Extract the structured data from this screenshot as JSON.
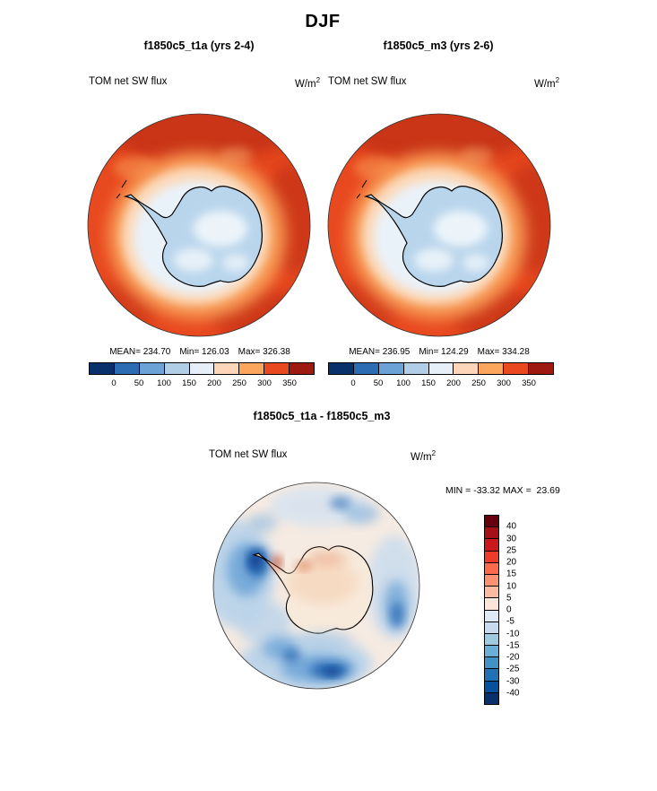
{
  "page_title": "DJF",
  "panels": [
    {
      "title": "f1850c5_t1a (yrs 2-4)",
      "var_label": "TOM net SW flux",
      "units_base": "W/m",
      "units_exp": "2",
      "mean": "MEAN= 234.70",
      "min": "Min= 126.03",
      "max": "Max= 326.38"
    },
    {
      "title": "f1850c5_m3 (yrs 2-6)",
      "var_label": "TOM net SW flux",
      "units_base": "W/m",
      "units_exp": "2",
      "mean": "MEAN= 236.95",
      "min": "Min= 124.29",
      "max": "Max= 334.28"
    }
  ],
  "diff": {
    "title": "f1850c5_t1a - f1850c5_m3",
    "var_label": "TOM net SW flux",
    "units_base": "W/m",
    "units_exp": "2",
    "minmax": "MIN = -33.32 MAX =  23.69"
  },
  "flux_colorbar": {
    "ticks": [
      "0",
      "50",
      "100",
      "150",
      "200",
      "250",
      "300",
      "350"
    ],
    "colors": [
      "#08306b",
      "#2b6cb3",
      "#6ba3d6",
      "#b0cfe7",
      "#e6eff7",
      "#fdd5b8",
      "#fca55d",
      "#e8491f",
      "#9e1a10"
    ]
  },
  "diff_colorbar": {
    "ticks": [
      "40",
      "30",
      "25",
      "20",
      "15",
      "10",
      "5",
      "0",
      "-5",
      "-10",
      "-15",
      "-20",
      "-25",
      "-30",
      "-40"
    ],
    "colors_top_to_bottom": [
      "#67000d",
      "#a50f15",
      "#cb181d",
      "#ef3b2c",
      "#fb6a4a",
      "#fc9272",
      "#fcbba1",
      "#fee5d9",
      "#deebf7",
      "#c6dbef",
      "#9ecae1",
      "#6baed6",
      "#4292c6",
      "#2171b5",
      "#08519c",
      "#08306b"
    ]
  },
  "chart_data": [
    {
      "type": "heatmap",
      "title": "f1850c5_t1a (yrs 2-4)",
      "season": "DJF",
      "variable": "TOM net SW flux",
      "units": "W/m^2",
      "projection": "south polar stereographic (Antarctica)",
      "stats": {
        "mean": 234.7,
        "min": 126.03,
        "max": 326.38
      },
      "levels": [
        0,
        50,
        100,
        150,
        200,
        250,
        300,
        350
      ],
      "palette": [
        "#08306b",
        "#2b6cb3",
        "#6ba3d6",
        "#b0cfe7",
        "#e6eff7",
        "#fdd5b8",
        "#fca55d",
        "#e8491f",
        "#9e1a10"
      ],
      "legend_position": "bottom",
      "description": "High SW flux (orange/red, ~250-330 W/m^2) over Southern Ocean, low (pale blue, ~125-200 W/m^2) over the Antarctic continent"
    },
    {
      "type": "heatmap",
      "title": "f1850c5_m3 (yrs 2-6)",
      "season": "DJF",
      "variable": "TOM net SW flux",
      "units": "W/m^2",
      "projection": "south polar stereographic (Antarctica)",
      "stats": {
        "mean": 236.95,
        "min": 124.29,
        "max": 334.28
      },
      "levels": [
        0,
        50,
        100,
        150,
        200,
        250,
        300,
        350
      ],
      "palette": [
        "#08306b",
        "#2b6cb3",
        "#6ba3d6",
        "#b0cfe7",
        "#e6eff7",
        "#fdd5b8",
        "#fca55d",
        "#e8491f",
        "#9e1a10"
      ],
      "legend_position": "bottom",
      "description": "High SW flux (orange/red) over Southern Ocean, low (pale blue) over the Antarctic continent"
    },
    {
      "type": "heatmap",
      "title": "f1850c5_t1a - f1850c5_m3",
      "season": "DJF",
      "variable": "TOM net SW flux",
      "units": "W/m^2",
      "projection": "south polar stereographic (Antarctica)",
      "stats": {
        "min": -33.32,
        "max": 23.69
      },
      "levels": [
        -40,
        -30,
        -25,
        -20,
        -15,
        -10,
        -5,
        0,
        5,
        10,
        15,
        20,
        25,
        30,
        40
      ],
      "palette": [
        "#08306b",
        "#08519c",
        "#2171b5",
        "#4292c6",
        "#6baed6",
        "#9ecae1",
        "#c6dbef",
        "#deebf7",
        "#fee5d9",
        "#fcbba1",
        "#fc9272",
        "#fb6a4a",
        "#ef3b2c",
        "#cb181d",
        "#a50f15",
        "#67000d"
      ],
      "legend_position": "right",
      "description": "Mostly small positive (pale pink) differences over the continent, negative (blue) patches over the surrounding ocean, strongest negative near the Antarctic Peninsula and at the lower edge"
    }
  ]
}
